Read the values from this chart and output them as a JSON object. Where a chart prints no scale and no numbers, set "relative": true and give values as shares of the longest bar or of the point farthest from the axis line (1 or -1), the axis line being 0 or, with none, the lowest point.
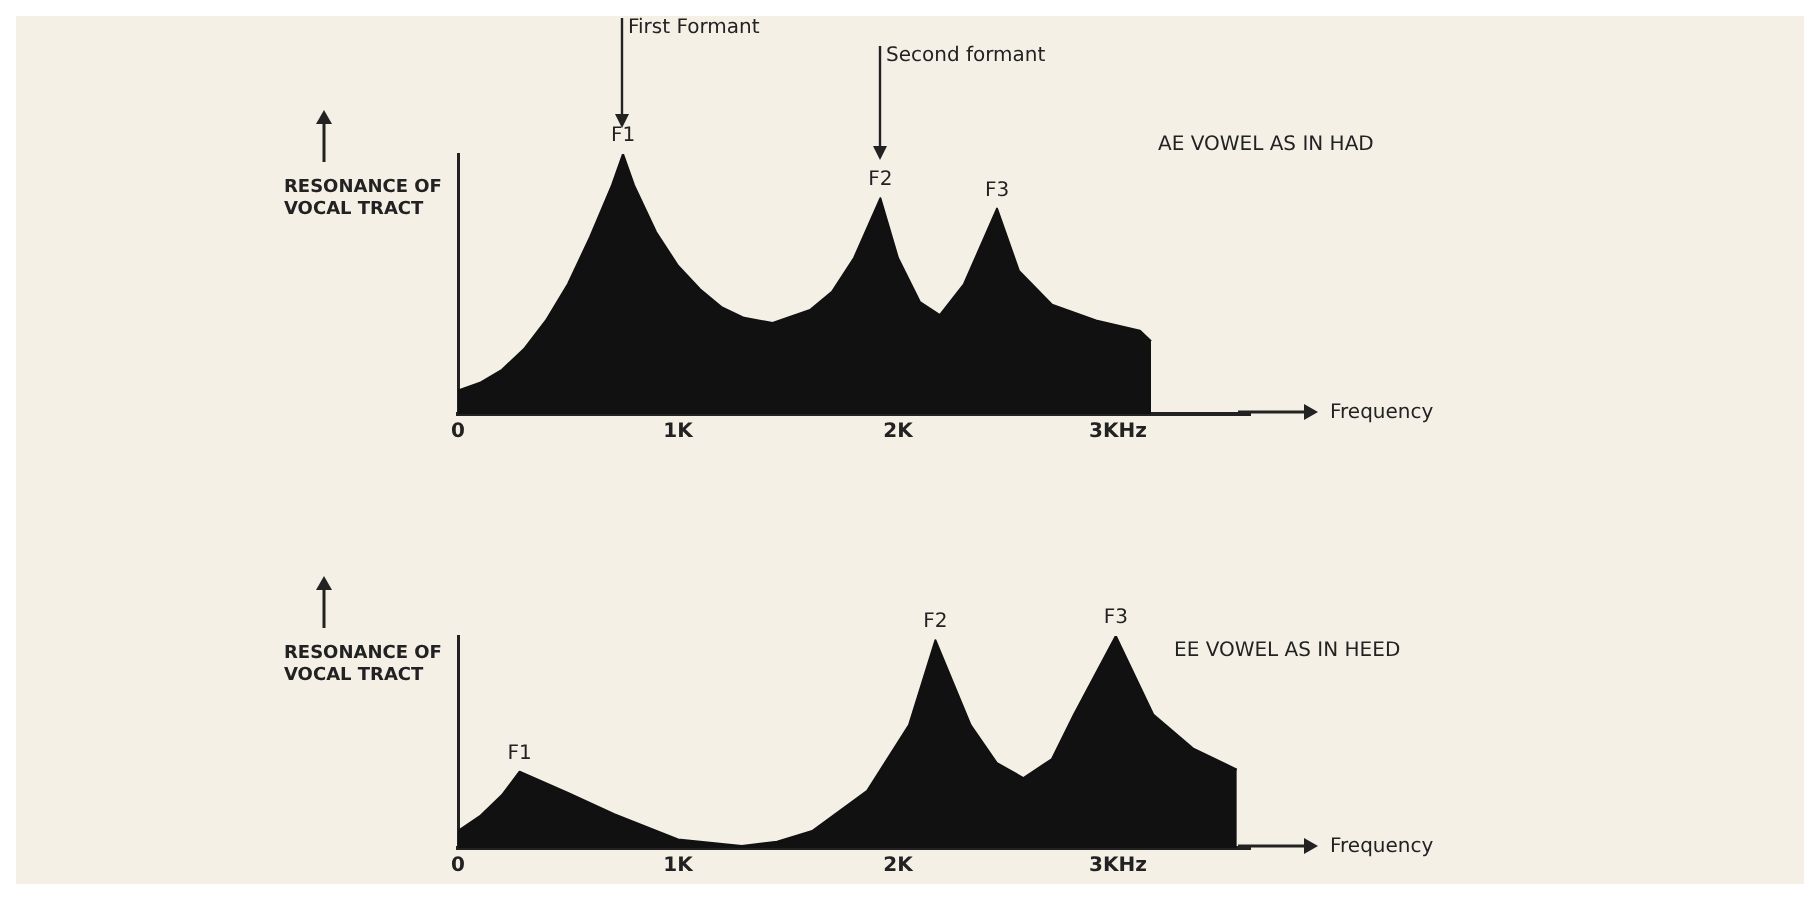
{
  "chart_data": [
    {
      "type": "area",
      "title": "AE VOWEL AS IN HAD",
      "ylabel": "RESONANCE OF VOCAL TRACT",
      "xlabel": "Frequency",
      "relative": true,
      "color": "#111111",
      "x": [
        0,
        0.1,
        0.2,
        0.3,
        0.4,
        0.5,
        0.6,
        0.7,
        0.75,
        0.8,
        0.9,
        1.0,
        1.1,
        1.2,
        1.3,
        1.43,
        1.6,
        1.7,
        1.8,
        1.92,
        2.0,
        2.1,
        2.19,
        2.3,
        2.45,
        2.55,
        2.7,
        2.9,
        3.1,
        3.15
      ],
      "values": [
        0.09,
        0.12,
        0.17,
        0.25,
        0.36,
        0.5,
        0.68,
        0.88,
        1.0,
        0.88,
        0.7,
        0.57,
        0.48,
        0.41,
        0.37,
        0.35,
        0.4,
        0.47,
        0.6,
        0.83,
        0.6,
        0.43,
        0.38,
        0.5,
        0.79,
        0.55,
        0.42,
        0.36,
        0.32,
        0.28
      ],
      "xlim": [
        0,
        3.6
      ],
      "xticks": [
        0,
        {
          "value": 1,
          "label": "1K"
        },
        {
          "value": 2,
          "label": "2K"
        },
        {
          "value": 3,
          "label": "3KHz"
        }
      ],
      "annotations": [
        {
          "text": "F1",
          "x": 0.75,
          "y": 1.0
        },
        {
          "text": "F2",
          "x": 1.92,
          "y": 0.83
        },
        {
          "text": "F3",
          "x": 2.45,
          "y": 0.79
        },
        "First Formant",
        "Second formant"
      ]
    },
    {
      "type": "area",
      "title": "EE VOWEL AS IN HEED",
      "ylabel": "RESONANCE OF VOCAL TRACT",
      "xlabel": "Frequency",
      "relative": true,
      "color": "#111111",
      "x": [
        0,
        0.1,
        0.2,
        0.28,
        0.5,
        0.71,
        1.0,
        1.29,
        1.45,
        1.61,
        1.86,
        2.05,
        2.17,
        2.33,
        2.45,
        2.57,
        2.7,
        2.8,
        2.99,
        3.16,
        3.34,
        3.54
      ],
      "values": [
        0.08,
        0.15,
        0.25,
        0.36,
        0.26,
        0.16,
        0.04,
        0.01,
        0.03,
        0.08,
        0.27,
        0.58,
        0.98,
        0.58,
        0.4,
        0.33,
        0.42,
        0.63,
        1.0,
        0.63,
        0.47,
        0.37
      ],
      "xlim": [
        0,
        3.6
      ],
      "xticks": [
        0,
        {
          "value": 1,
          "label": "1K"
        },
        {
          "value": 2,
          "label": "2K"
        },
        {
          "value": 3,
          "label": "3KHz"
        }
      ],
      "annotations": [
        {
          "text": "F1",
          "x": 0.28,
          "y": 0.36
        },
        {
          "text": "F2",
          "x": 2.17,
          "y": 0.98
        },
        {
          "text": "F3",
          "x": 2.99,
          "y": 1.0
        }
      ]
    }
  ]
}
